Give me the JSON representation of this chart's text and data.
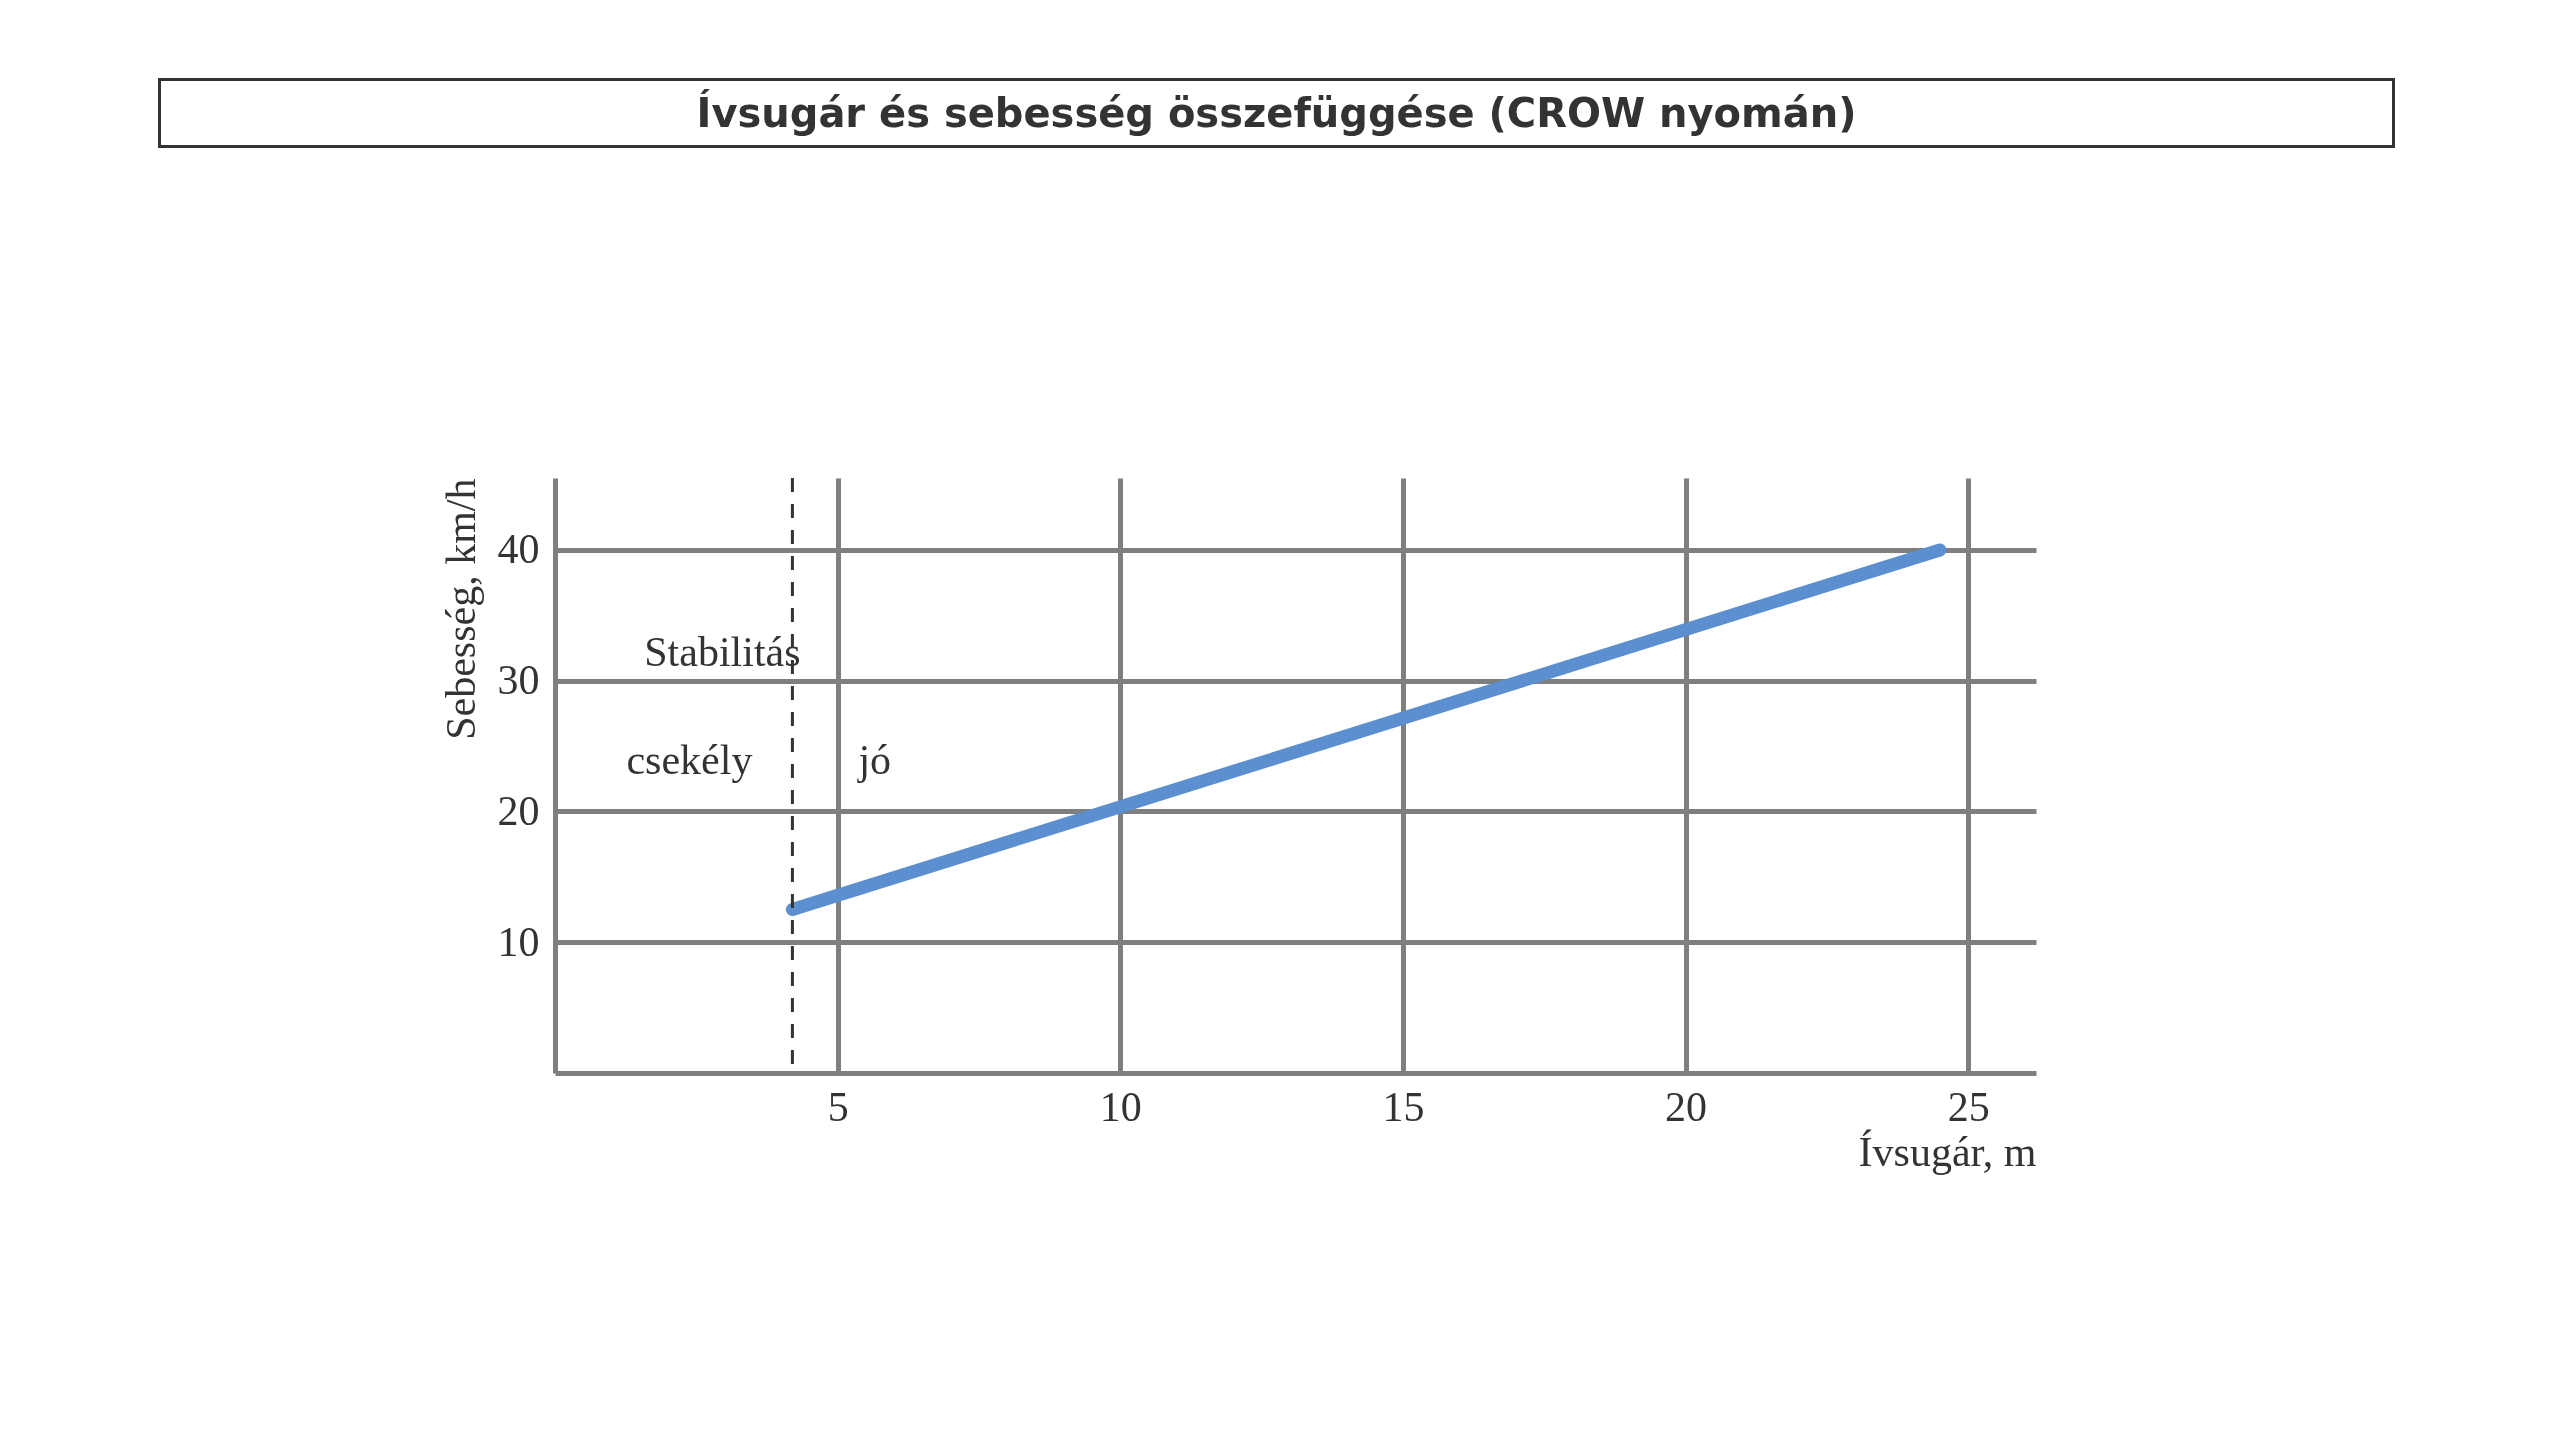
{
  "chart_data": {
    "type": "line",
    "title": "Ívsugár és sebesség összefüggése (CROW nyomán)",
    "xlabel": "Ívsugár, m",
    "ylabel": "Sebesség, km/h",
    "x": [
      4.2,
      24.5
    ],
    "series": [
      {
        "color": "#5b8fcf",
        "values": [
          12.5,
          40
        ]
      }
    ],
    "xlim": [
      0,
      26.2
    ],
    "ylim": [
      0,
      45.5
    ],
    "xticks": [
      5,
      10,
      15,
      20,
      25
    ],
    "yticks": [
      10,
      20,
      30,
      40
    ],
    "grid": true,
    "marker": "none",
    "line_style": "solid",
    "ref_lines": [
      {
        "axis": "x",
        "value": 4.2,
        "line_style": "dashed",
        "color": "#333333"
      }
    ],
    "annotations": [
      "Stabilitás",
      "csekély",
      "jó"
    ]
  }
}
